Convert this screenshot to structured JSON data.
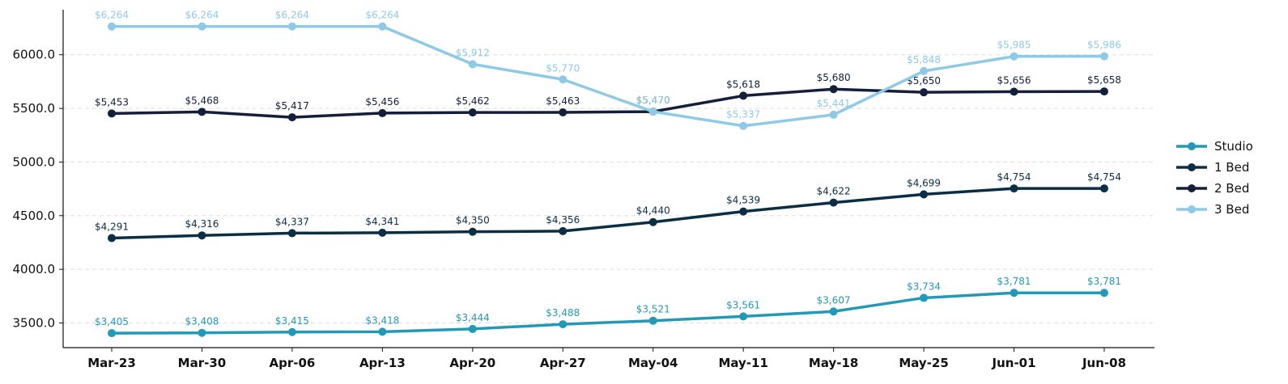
{
  "chart_data": {
    "type": "line",
    "title": "",
    "xlabel": "",
    "ylabel": "",
    "categories": [
      "Mar-23",
      "Mar-30",
      "Apr-06",
      "Apr-13",
      "Apr-20",
      "Apr-27",
      "May-04",
      "May-11",
      "May-18",
      "May-25",
      "Jun-01",
      "Jun-08"
    ],
    "ylim": [
      3270,
      6420
    ],
    "yticks": [
      3500,
      4000,
      4500,
      5000,
      5500,
      6000
    ],
    "ytick_labels": [
      "3500.0",
      "4000.0",
      "4500.0",
      "5000.0",
      "5500.0",
      "6000.0"
    ],
    "grid": "horizontal-dashed",
    "legend_position": "right",
    "series": [
      {
        "name": "Studio",
        "color": "#2399b8",
        "values": [
          3405,
          3408,
          3415,
          3418,
          3444,
          3488,
          3521,
          3561,
          3607,
          3734,
          3781,
          3781
        ],
        "labels": [
          "$3,405",
          "$3,408",
          "$3,415",
          "$3,418",
          "$3,444",
          "$3,488",
          "$3,521",
          "$3,561",
          "$3,607",
          "$3,734",
          "$3,781",
          "$3,781"
        ]
      },
      {
        "name": "1 Bed",
        "color": "#0a2e45",
        "values": [
          4291,
          4316,
          4337,
          4341,
          4350,
          4356,
          4440,
          4539,
          4622,
          4699,
          4754,
          4754
        ],
        "labels": [
          "$4,291",
          "$4,316",
          "$4,337",
          "$4,341",
          "$4,350",
          "$4,356",
          "$4,440",
          "$4,539",
          "$4,622",
          "$4,699",
          "$4,754",
          "$4,754"
        ]
      },
      {
        "name": "2 Bed",
        "color": "#141f3c",
        "values": [
          5453,
          5468,
          5417,
          5456,
          5462,
          5463,
          5470,
          5618,
          5680,
          5650,
          5656,
          5658
        ],
        "labels": [
          "$5,453",
          "$5,468",
          "$5,417",
          "$5,456",
          "$5,462",
          "$5,463",
          "$5,470",
          "$5,618",
          "$5,680",
          "$5,650",
          "$5,656",
          "$5,658"
        ]
      },
      {
        "name": "3 Bed",
        "color": "#8ecae6",
        "values": [
          6264,
          6264,
          6264,
          6264,
          5912,
          5770,
          5470,
          5337,
          5441,
          5848,
          5985,
          5986
        ],
        "labels": [
          "$6,264",
          "$6,264",
          "$6,264",
          "$6,264",
          "$5,912",
          "$5,770",
          "$5,470",
          "$5,337",
          "$5,441",
          "$5,848",
          "$5,985",
          "$5,986"
        ]
      }
    ]
  }
}
